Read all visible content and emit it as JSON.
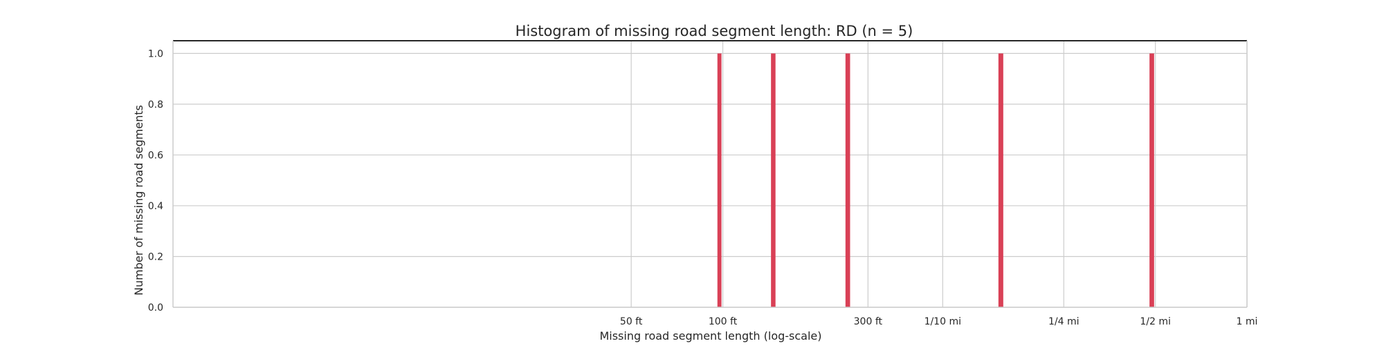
{
  "chart_data": {
    "type": "bar",
    "title": "Histogram of missing road segment length: RD (n = 5)",
    "xlabel": "Missing road segment  length (log-scale)",
    "ylabel": "Number of missing road segments",
    "x_scale": "log",
    "x_unit": "ft",
    "xlim": [
      1.56,
      5280
    ],
    "ylim": [
      0,
      1.05
    ],
    "x_ticks": [
      {
        "value": 50,
        "label": "50 ft"
      },
      {
        "value": 100,
        "label": "100 ft"
      },
      {
        "value": 300,
        "label": "300 ft"
      },
      {
        "value": 528,
        "label": "1/10 mi"
      },
      {
        "value": 1320,
        "label": "1/4 mi"
      },
      {
        "value": 2640,
        "label": "1/2 mi"
      },
      {
        "value": 5280,
        "label": "1 mi"
      }
    ],
    "y_ticks": [
      0.0,
      0.2,
      0.4,
      0.6,
      0.8,
      1.0
    ],
    "y_tick_labels": [
      "0.0",
      "0.2",
      "0.4",
      "0.6",
      "0.8",
      "1.0"
    ],
    "bars": [
      {
        "x_start": 96,
        "x_end": 99,
        "count": 1
      },
      {
        "x_start": 144,
        "x_end": 149,
        "count": 1
      },
      {
        "x_start": 253,
        "x_end": 262,
        "count": 1
      },
      {
        "x_start": 805,
        "x_end": 835,
        "count": 1
      },
      {
        "x_start": 2525,
        "x_end": 2615,
        "count": 1
      }
    ],
    "bar_color": "#d94056",
    "grid": true,
    "grid_color": "#cccccc",
    "top_spine_color": "#262626"
  }
}
